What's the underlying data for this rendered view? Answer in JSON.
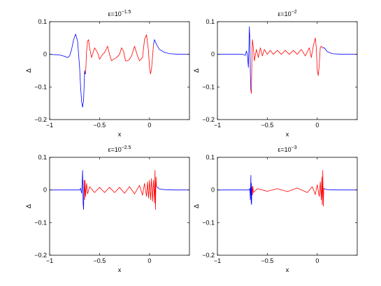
{
  "figure": {
    "background": "#ffffff",
    "colors": {
      "blue": "#0000ff",
      "red": "#ff0000",
      "axes": "#000000"
    }
  },
  "chart_data": [
    {
      "type": "line",
      "title_base": "ε=10",
      "title_exp": "−1.5",
      "xlabel": "x",
      "ylabel": "Δ",
      "xlim": [
        -1,
        0.4
      ],
      "ylim": [
        -0.2,
        0.1
      ],
      "xticks": [
        -1,
        -0.5,
        0
      ],
      "xtick_labels": [
        "−1",
        "−0.5",
        "0"
      ],
      "yticks": [
        -0.2,
        -0.1,
        0,
        0.1
      ],
      "ytick_labels": [
        "−0.2",
        "−0.1",
        "0",
        "0.1"
      ],
      "grid": false,
      "series": [
        {
          "color": "#0000ff",
          "x": [
            -1,
            -0.9,
            -0.85,
            -0.82,
            -0.8,
            -0.78,
            -0.76,
            -0.74,
            -0.72,
            -0.7,
            -0.69,
            -0.68,
            -0.67,
            -0.66,
            -0.655,
            -0.65,
            -0.645,
            -0.64
          ],
          "y": [
            0,
            -0.002,
            -0.006,
            -0.01,
            -0.005,
            0.015,
            0.045,
            0.062,
            0.04,
            -0.04,
            -0.1,
            -0.145,
            -0.162,
            -0.14,
            -0.1,
            -0.05,
            -0.06,
            -0.06
          ]
        },
        {
          "color": "#ff0000",
          "x": [
            -0.64,
            -0.63,
            -0.62,
            -0.61,
            -0.6,
            -0.58,
            -0.55,
            -0.52,
            -0.5,
            -0.47,
            -0.45,
            -0.42,
            -0.4,
            -0.38,
            -0.36,
            -0.33,
            -0.3,
            -0.28,
            -0.26,
            -0.24,
            -0.22,
            -0.2,
            -0.18,
            -0.15,
            -0.12,
            -0.1,
            -0.07,
            -0.05,
            -0.03,
            -0.01,
            0,
            0.01,
            0.02,
            0.03,
            0.04
          ],
          "y": [
            -0.06,
            0.01,
            0.04,
            0.045,
            0.02,
            -0.01,
            0.02,
            0.005,
            -0.015,
            0.0,
            0.005,
            0.025,
            0.0,
            -0.02,
            -0.015,
            -0.01,
            0.0,
            0.02,
            0.01,
            -0.02,
            -0.02,
            -0.015,
            -0.005,
            0.025,
            -0.005,
            -0.02,
            -0.01,
            0.045,
            0.06,
            0.01,
            -0.04,
            -0.06,
            -0.045,
            -0.01,
            0.03
          ]
        },
        {
          "color": "#0000ff",
          "x": [
            0.04,
            0.05,
            0.07,
            0.1,
            0.15,
            0.2,
            0.3,
            0.4
          ],
          "y": [
            0.03,
            0.045,
            0.03,
            0.015,
            0.006,
            0.002,
            0.0,
            0.0
          ]
        }
      ]
    },
    {
      "type": "line",
      "title_base": "ε=10",
      "title_exp": "−2",
      "xlabel": "x",
      "ylabel": "Δ",
      "xlim": [
        -1,
        0.4
      ],
      "ylim": [
        -0.2,
        0.1
      ],
      "xticks": [
        -1,
        -0.5,
        0
      ],
      "xtick_labels": [
        "−1",
        "−0.5",
        "0"
      ],
      "yticks": [
        -0.2,
        -0.1,
        0,
        0.1
      ],
      "ytick_labels": [
        "−0.2",
        "−0.1",
        "0",
        "0.1"
      ],
      "grid": false,
      "series": [
        {
          "color": "#0000ff",
          "x": [
            -1,
            -0.8,
            -0.75,
            -0.72,
            -0.71,
            -0.7,
            -0.69,
            -0.685,
            -0.68,
            -0.675,
            -0.67,
            -0.665
          ],
          "y": [
            0,
            0,
            0.0,
            -0.003,
            0.01,
            0.0,
            -0.04,
            0.02,
            0.085,
            0.04,
            -0.06,
            -0.11
          ]
        },
        {
          "color": "#ff0000",
          "x": [
            -0.665,
            -0.66,
            -0.655,
            -0.65,
            -0.64,
            -0.63,
            -0.61,
            -0.59,
            -0.57,
            -0.55,
            -0.53,
            -0.5,
            -0.47,
            -0.44,
            -0.4,
            -0.36,
            -0.32,
            -0.28,
            -0.24,
            -0.2,
            -0.16,
            -0.12,
            -0.08,
            -0.06,
            -0.04,
            -0.02,
            -0.01,
            0.0,
            0.01,
            0.02,
            0.03,
            0.04,
            0.05
          ],
          "y": [
            -0.11,
            -0.12,
            -0.02,
            0.045,
            0.02,
            -0.02,
            0.015,
            -0.01,
            0.02,
            -0.005,
            0.015,
            0.0,
            0.012,
            0.0,
            0.012,
            0.0,
            0.012,
            0.0,
            0.012,
            0.0,
            0.015,
            -0.005,
            0.02,
            -0.01,
            0.025,
            0.05,
            0.02,
            -0.05,
            -0.065,
            -0.03,
            0.02,
            0.025,
            0.02
          ]
        },
        {
          "color": "#0000ff",
          "x": [
            0.05,
            0.07,
            0.1,
            0.15,
            0.25,
            0.4
          ],
          "y": [
            0.02,
            0.02,
            0.008,
            0.002,
            0.0,
            0.0
          ]
        }
      ]
    },
    {
      "type": "line",
      "title_base": "ε=10",
      "title_exp": "−2.5",
      "xlabel": "x",
      "ylabel": "Δ",
      "xlim": [
        -1,
        0.4
      ],
      "ylim": [
        -0.2,
        0.1
      ],
      "xticks": [
        -1,
        -0.5,
        0
      ],
      "xtick_labels": [
        "−1",
        "−0.5",
        "0"
      ],
      "yticks": [
        -0.2,
        -0.1,
        0,
        0.1
      ],
      "ytick_labels": [
        "−0.2",
        "−0.1",
        "0",
        "0.1"
      ],
      "grid": false,
      "series": [
        {
          "color": "#0000ff",
          "x": [
            -1,
            -0.7,
            -0.69,
            -0.68,
            -0.675,
            -0.67,
            -0.665,
            -0.66,
            -0.655
          ],
          "y": [
            0,
            0,
            0.005,
            -0.01,
            0.02,
            0.06,
            -0.04,
            -0.06,
            0.03
          ]
        },
        {
          "color": "#ff0000",
          "x": [
            -0.655,
            -0.65,
            -0.645,
            -0.64,
            -0.63,
            -0.62,
            -0.6,
            -0.55,
            -0.5,
            -0.45,
            -0.4,
            -0.35,
            -0.3,
            -0.25,
            -0.2,
            -0.15,
            -0.1,
            -0.07,
            -0.05,
            -0.03,
            -0.02,
            -0.01,
            0.0,
            0.01,
            0.02,
            0.03,
            0.04,
            0.05,
            0.055,
            0.06,
            0.065,
            0.07
          ],
          "y": [
            0.03,
            -0.03,
            0.03,
            -0.02,
            0.02,
            -0.012,
            0.01,
            -0.008,
            0.008,
            -0.008,
            0.008,
            -0.008,
            0.008,
            -0.01,
            0.01,
            -0.012,
            0.014,
            -0.016,
            0.02,
            -0.02,
            0.025,
            -0.025,
            0.03,
            -0.03,
            0.035,
            -0.035,
            0.03,
            -0.04,
            0.06,
            -0.06,
            0.04,
            0.01
          ]
        },
        {
          "color": "#0000ff",
          "x": [
            0.07,
            0.08,
            0.1,
            0.15,
            0.25,
            0.4
          ],
          "y": [
            0.01,
            0.008,
            0.003,
            0.001,
            0.0,
            0.0
          ]
        }
      ]
    },
    {
      "type": "line",
      "title_base": "ε=10",
      "title_exp": "−3",
      "xlabel": "x",
      "ylabel": "Δ",
      "xlim": [
        -1,
        0.4
      ],
      "ylim": [
        -0.2,
        0.1
      ],
      "xticks": [
        -1,
        -0.5,
        0
      ],
      "xtick_labels": [
        "−1",
        "−0.5",
        "0"
      ],
      "yticks": [
        -0.2,
        -0.1,
        0,
        0.1
      ],
      "ytick_labels": [
        "−0.2",
        "−0.1",
        "0",
        "0.1"
      ],
      "grid": false,
      "series": [
        {
          "color": "#0000ff",
          "x": [
            -1,
            -0.68,
            -0.675,
            -0.67,
            -0.665,
            -0.662,
            -0.66,
            -0.658,
            -0.655
          ],
          "y": [
            0,
            0,
            0.005,
            -0.03,
            0.045,
            -0.04,
            0.02,
            -0.045,
            0.01
          ]
        },
        {
          "color": "#ff0000",
          "x": [
            -0.655,
            -0.65,
            -0.645,
            -0.64,
            -0.6,
            -0.5,
            -0.4,
            -0.3,
            -0.2,
            -0.1,
            -0.05,
            -0.02,
            0.0,
            0.02,
            0.03,
            0.04,
            0.045,
            0.05,
            0.055,
            0.06,
            0.065
          ],
          "y": [
            0.01,
            -0.015,
            0.012,
            -0.008,
            0.004,
            -0.004,
            0.004,
            -0.005,
            0.006,
            -0.008,
            0.01,
            -0.014,
            0.016,
            -0.02,
            0.025,
            -0.03,
            0.04,
            -0.045,
            0.06,
            -0.05,
            0.005
          ]
        },
        {
          "color": "#0000ff",
          "x": [
            0.065,
            0.08,
            0.1,
            0.2,
            0.4
          ],
          "y": [
            0.005,
            0.002,
            0.001,
            0.0,
            0.0
          ]
        }
      ]
    }
  ]
}
